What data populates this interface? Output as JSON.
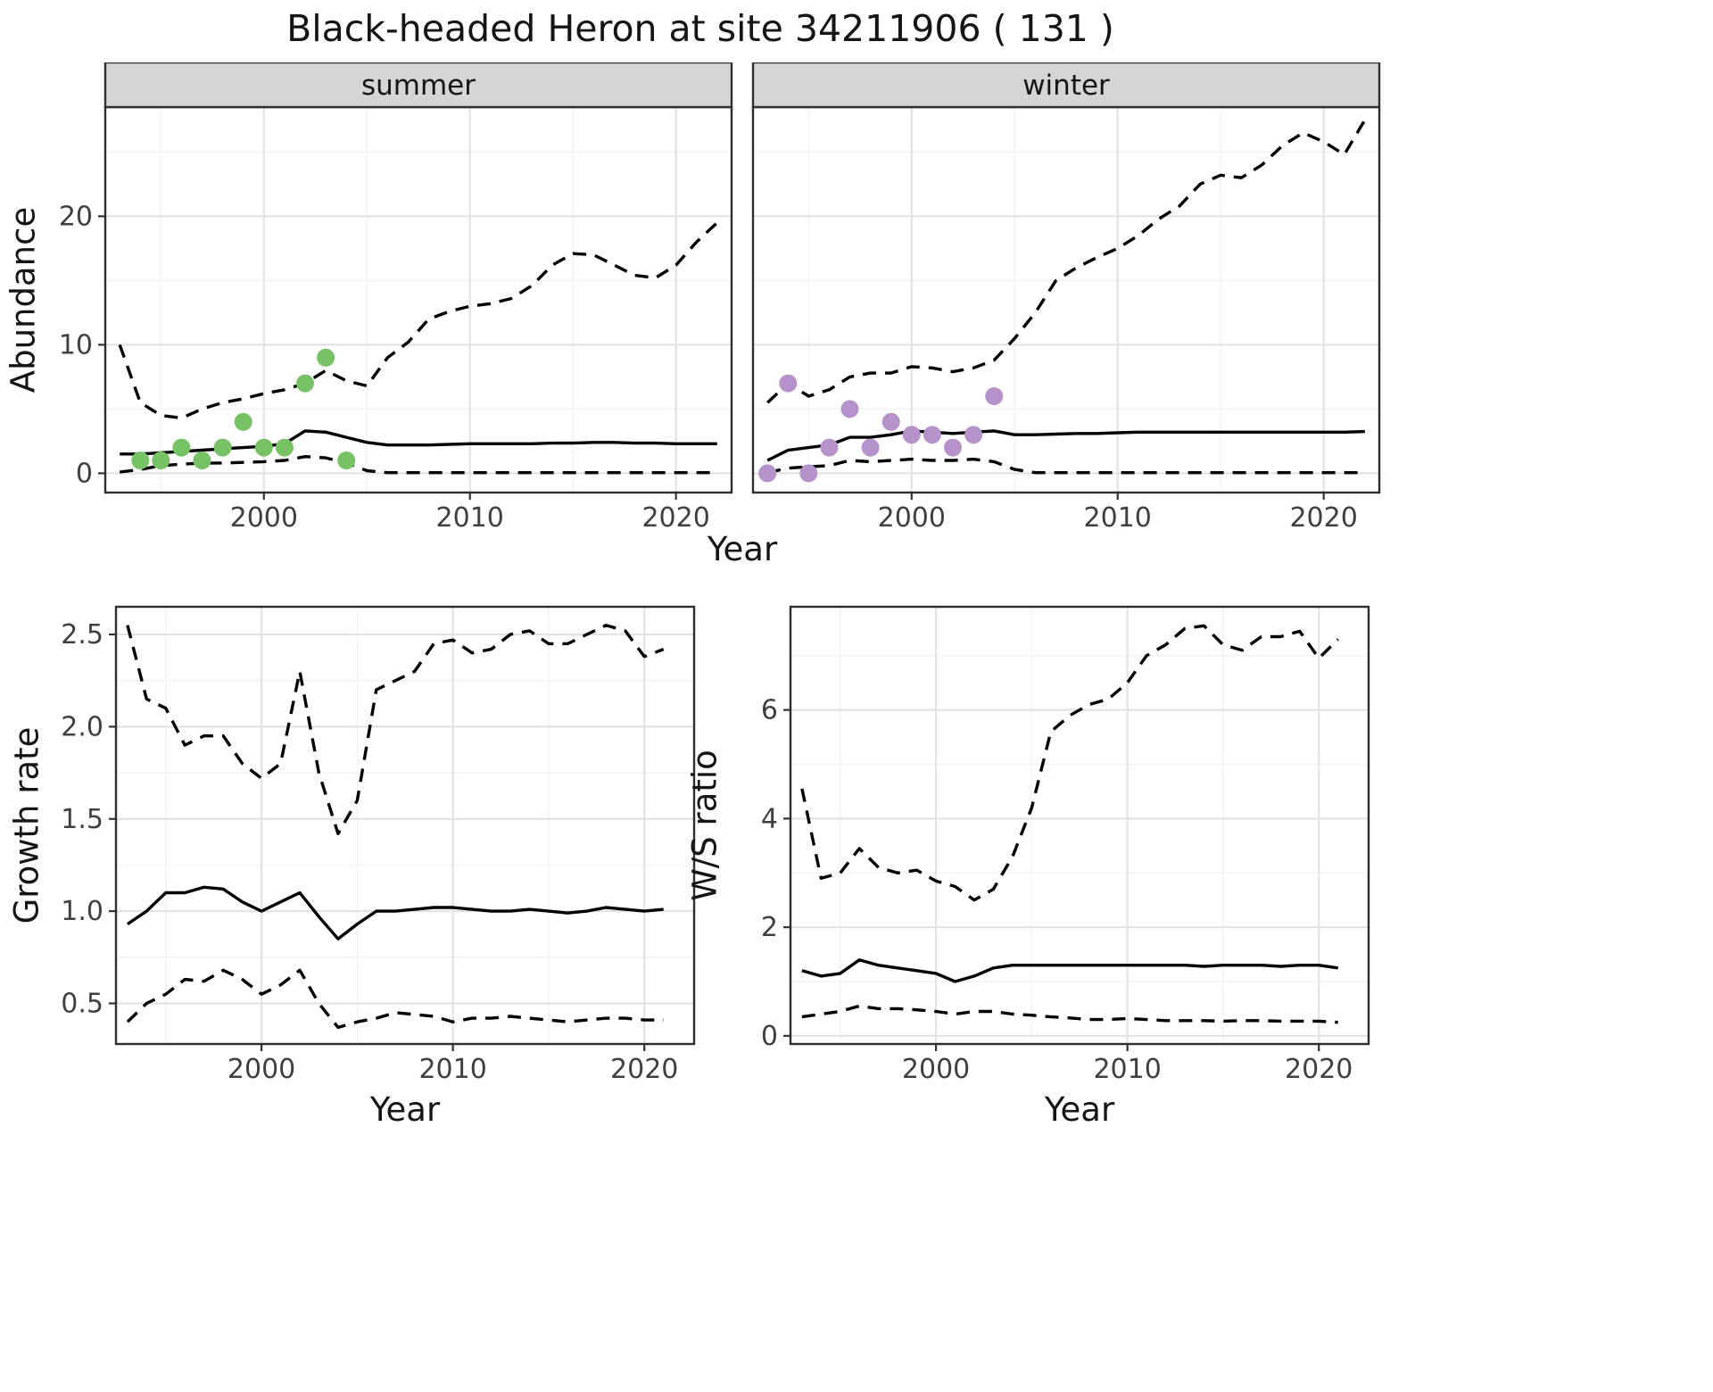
{
  "title": "Black-headed Heron at site 34211906 ( 131 )",
  "chart_data": {
    "type": "line",
    "title": "Black-headed Heron at site 34211906 ( 131 )",
    "abundance": {
      "ylabel": "Abundance",
      "xlabel": "Year",
      "xlim": [
        1992.3,
        2022.7
      ],
      "ylim": [
        -1.5,
        28.5
      ],
      "xticks": [
        2000,
        2010,
        2020
      ],
      "xticklabels": [
        "2000",
        "2010",
        "2020"
      ],
      "xminor": [
        1995,
        2005,
        2015
      ],
      "yticks": [
        0,
        10,
        20
      ],
      "yticklabels": [
        "0",
        "10",
        "20"
      ],
      "yminor": [
        5,
        15,
        25
      ],
      "facets": [
        {
          "label": "summer",
          "point_color": "#78c266",
          "points": {
            "x": [
              1994,
              1995,
              1996,
              1997,
              1998,
              1999,
              2000,
              2001,
              2002,
              2003,
              2004
            ],
            "y": [
              1,
              1,
              2,
              1,
              2,
              4,
              2,
              2,
              7,
              9,
              1
            ]
          },
          "series": [
            {
              "name": "upper-ci",
              "style": "dashed",
              "start_year": 1993,
              "values": [
                10,
                5.5,
                4.5,
                4.3,
                5,
                5.5,
                5.8,
                6.2,
                6.5,
                7,
                8,
                7.2,
                6.8,
                9,
                10.2,
                12,
                12.6,
                13,
                13.2,
                13.6,
                14.6,
                16.2,
                17.1,
                17,
                16.2,
                15.4,
                15.2,
                16.2,
                18,
                19.5
              ]
            },
            {
              "name": "median",
              "style": "solid",
              "start_year": 1993,
              "values": [
                1.5,
                1.5,
                1.6,
                1.7,
                1.8,
                1.9,
                2,
                2.1,
                2.3,
                3.3,
                3.2,
                2.8,
                2.4,
                2.2,
                2.2,
                2.2,
                2.25,
                2.3,
                2.3,
                2.3,
                2.3,
                2.35,
                2.35,
                2.4,
                2.4,
                2.35,
                2.35,
                2.3,
                2.3,
                2.3
              ]
            },
            {
              "name": "lower-ci",
              "style": "dashed",
              "start_year": 1993,
              "values": [
                0.1,
                0.3,
                0.6,
                0.7,
                0.8,
                0.8,
                0.85,
                0.9,
                1,
                1.3,
                1.2,
                0.8,
                0.2,
                0.05,
                0.05,
                0.05,
                0.05,
                0.05,
                0.05,
                0.05,
                0.05,
                0.05,
                0.05,
                0.05,
                0.05,
                0.05,
                0.05,
                0.05,
                0.05,
                0.05
              ]
            }
          ]
        },
        {
          "label": "winter",
          "point_color": "#b692ca",
          "points": {
            "x": [
              1993,
              1994,
              1995,
              1996,
              1997,
              1998,
              1999,
              2000,
              2001,
              2002,
              2003,
              2004
            ],
            "y": [
              0,
              7,
              0,
              2,
              5,
              2,
              4,
              3,
              3,
              2,
              3,
              6
            ]
          },
          "series": [
            {
              "name": "upper-ci",
              "style": "dashed",
              "start_year": 1993,
              "values": [
                5.5,
                7,
                6,
                6.5,
                7.5,
                7.8,
                7.8,
                8.3,
                8.2,
                7.9,
                8.2,
                8.8,
                10.5,
                12.5,
                15,
                16,
                16.8,
                17.5,
                18.5,
                19.8,
                20.8,
                22.5,
                23.2,
                23,
                24,
                25.5,
                26.5,
                25.8,
                24.8,
                27.5
              ]
            },
            {
              "name": "median",
              "style": "solid",
              "start_year": 1993,
              "values": [
                1,
                1.8,
                2,
                2.2,
                2.8,
                2.8,
                3,
                3.3,
                3.2,
                3.1,
                3.2,
                3.3,
                3,
                3,
                3.05,
                3.1,
                3.1,
                3.15,
                3.2,
                3.2,
                3.2,
                3.2,
                3.2,
                3.2,
                3.2,
                3.2,
                3.2,
                3.2,
                3.2,
                3.25
              ]
            },
            {
              "name": "lower-ci",
              "style": "dashed",
              "start_year": 1993,
              "values": [
                0.05,
                0.4,
                0.5,
                0.6,
                1,
                0.9,
                1,
                1.1,
                1,
                1,
                1.1,
                0.9,
                0.3,
                0.05,
                0.05,
                0.05,
                0.05,
                0.05,
                0.05,
                0.05,
                0.05,
                0.05,
                0.05,
                0.05,
                0.05,
                0.05,
                0.05,
                0.05,
                0.05,
                0.05
              ]
            }
          ]
        }
      ]
    },
    "growth": {
      "ylabel": "Growth rate",
      "xlabel": "Year",
      "xlim": [
        1992.4,
        2022.6
      ],
      "ylim": [
        0.28,
        2.65
      ],
      "xticks": [
        2000,
        2010,
        2020
      ],
      "xticklabels": [
        "2000",
        "2010",
        "2020"
      ],
      "xminor": [
        1995,
        2005,
        2015
      ],
      "yticks": [
        0.5,
        1.0,
        1.5,
        2.0,
        2.5
      ],
      "yticklabels": [
        "0.5",
        "1.0",
        "1.5",
        "2.0",
        "2.5"
      ],
      "yminor": [
        0.75,
        1.25,
        1.75,
        2.25
      ],
      "series": [
        {
          "name": "upper-ci",
          "style": "dashed",
          "start_year": 1993,
          "values": [
            2.55,
            2.15,
            2.1,
            1.9,
            1.95,
            1.95,
            1.8,
            1.72,
            1.8,
            2.3,
            1.75,
            1.42,
            1.6,
            2.2,
            2.25,
            2.3,
            2.45,
            2.47,
            2.4,
            2.42,
            2.5,
            2.52,
            2.45,
            2.45,
            2.5,
            2.55,
            2.52,
            2.38,
            2.42
          ]
        },
        {
          "name": "median",
          "style": "solid",
          "start_year": 1993,
          "values": [
            0.93,
            1,
            1.1,
            1.1,
            1.13,
            1.12,
            1.05,
            1,
            1.05,
            1.1,
            0.97,
            0.85,
            0.93,
            1,
            1,
            1.01,
            1.02,
            1.02,
            1.01,
            1,
            1,
            1.01,
            1,
            0.99,
            1,
            1.02,
            1.01,
            1,
            1.01
          ]
        },
        {
          "name": "lower-ci",
          "style": "dashed",
          "start_year": 1993,
          "values": [
            0.4,
            0.5,
            0.55,
            0.63,
            0.62,
            0.68,
            0.63,
            0.55,
            0.6,
            0.68,
            0.5,
            0.37,
            0.4,
            0.42,
            0.45,
            0.44,
            0.43,
            0.4,
            0.42,
            0.42,
            0.43,
            0.42,
            0.41,
            0.4,
            0.41,
            0.42,
            0.42,
            0.41,
            0.41
          ]
        }
      ]
    },
    "ws": {
      "ylabel": "W/S ratio",
      "xlabel": "Year",
      "xlim": [
        1992.4,
        2022.6
      ],
      "ylim": [
        -0.15,
        7.9
      ],
      "xticks": [
        2000,
        2010,
        2020
      ],
      "xticklabels": [
        "2000",
        "2010",
        "2020"
      ],
      "xminor": [
        1995,
        2005,
        2015
      ],
      "yticks": [
        0,
        2,
        4,
        6
      ],
      "yticklabels": [
        "0",
        "2",
        "4",
        "6"
      ],
      "yminor": [
        1,
        3,
        5,
        7
      ],
      "series": [
        {
          "name": "upper-ci",
          "style": "dashed",
          "start_year": 1993,
          "values": [
            4.55,
            2.9,
            3,
            3.45,
            3.1,
            3,
            3.05,
            2.85,
            2.75,
            2.5,
            2.7,
            3.3,
            4.2,
            5.6,
            5.9,
            6.1,
            6.2,
            6.5,
            7,
            7.2,
            7.5,
            7.55,
            7.2,
            7.1,
            7.35,
            7.35,
            7.45,
            6.95,
            7.3
          ]
        },
        {
          "name": "median",
          "style": "solid",
          "start_year": 1993,
          "values": [
            1.2,
            1.1,
            1.15,
            1.4,
            1.3,
            1.25,
            1.2,
            1.15,
            1,
            1.1,
            1.25,
            1.3,
            1.3,
            1.3,
            1.3,
            1.3,
            1.3,
            1.3,
            1.3,
            1.3,
            1.3,
            1.28,
            1.3,
            1.3,
            1.3,
            1.28,
            1.3,
            1.3,
            1.25
          ]
        },
        {
          "name": "lower-ci",
          "style": "dashed",
          "start_year": 1993,
          "values": [
            0.35,
            0.4,
            0.45,
            0.55,
            0.5,
            0.5,
            0.48,
            0.45,
            0.4,
            0.45,
            0.45,
            0.4,
            0.38,
            0.35,
            0.33,
            0.3,
            0.3,
            0.32,
            0.3,
            0.28,
            0.28,
            0.28,
            0.27,
            0.28,
            0.28,
            0.27,
            0.27,
            0.27,
            0.25
          ]
        }
      ]
    },
    "style": {
      "line_color": "#000000",
      "panel_border": "#2e2e2e",
      "strip_fill": "#d5d5d5",
      "grid_major": "#e3e3e3",
      "grid_minor": "#f3f3f3",
      "summer_point_color": "#78c266",
      "winter_point_color": "#b692ca"
    }
  }
}
